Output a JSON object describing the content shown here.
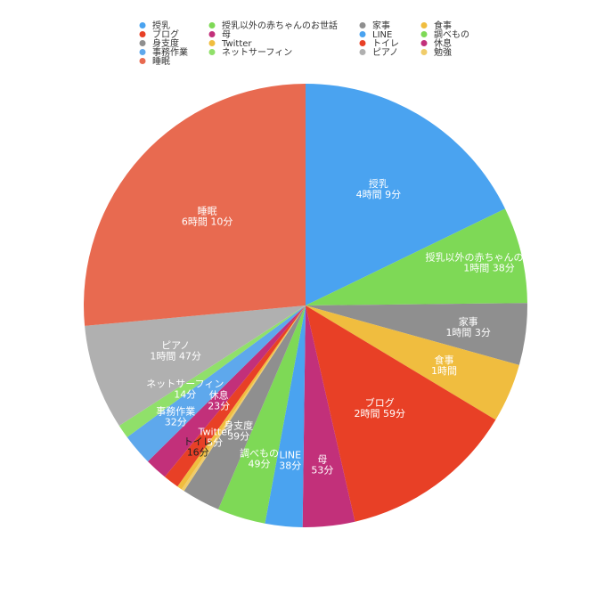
{
  "chart_data": {
    "type": "pie",
    "unit": "minutes",
    "slices": [
      {
        "name": "授乳",
        "value": 249,
        "display": "4時間 9分",
        "color": "#4aa3f0"
      },
      {
        "name": "授乳以外の赤ちゃんのお世話",
        "value": 98,
        "display": "1時間 38分",
        "color": "#7ed956"
      },
      {
        "name": "家事",
        "value": 63,
        "display": "1時間 3分",
        "color": "#8f8f8f"
      },
      {
        "name": "食事",
        "value": 60,
        "display": "1時間",
        "color": "#f0bd3f"
      },
      {
        "name": "ブログ",
        "value": 179,
        "display": "2時間 59分",
        "color": "#e84026"
      },
      {
        "name": "母",
        "value": 53,
        "display": "53分",
        "color": "#c2307a"
      },
      {
        "name": "LINE",
        "value": 38,
        "display": "38分",
        "color": "#4aa3f0"
      },
      {
        "name": "調べもの",
        "value": 49,
        "display": "49分",
        "color": "#7ed956"
      },
      {
        "name": "身支度",
        "value": 39,
        "display": "39分",
        "color": "#8f8f8f"
      },
      {
        "name": "勉強",
        "value": 3,
        "display": "",
        "color": "#f0cc6a"
      },
      {
        "name": "Twitter",
        "value": 5,
        "display": "5分",
        "color": "#f0bd3f"
      },
      {
        "name": "トイレ",
        "value": 16,
        "display": "16分",
        "color": "#e84026"
      },
      {
        "name": "休息",
        "value": 23,
        "display": "23分",
        "color": "#c2307a"
      },
      {
        "name": "事務作業",
        "value": 32,
        "display": "32分",
        "color": "#5ea8ec"
      },
      {
        "name": "ネットサーフィン",
        "value": 14,
        "display": "14分",
        "color": "#90e06a"
      },
      {
        "name": "ピアノ",
        "value": 107,
        "display": "1時間 47分",
        "color": "#b0b0b0"
      },
      {
        "name": "睡眠",
        "value": 370,
        "display": "6時間 10分",
        "color": "#e86a50"
      }
    ],
    "legend": {
      "position": "top",
      "entries": [
        {
          "name": "授乳",
          "color": "#4aa3f0"
        },
        {
          "name": "ブログ",
          "color": "#e84026"
        },
        {
          "name": "身支度",
          "color": "#8f8f8f"
        },
        {
          "name": "事務作業",
          "color": "#5ea8ec"
        },
        {
          "name": "睡眠",
          "color": "#e86a50"
        },
        {
          "name": "授乳以外の赤ちゃんのお世話",
          "color": "#7ed956"
        },
        {
          "name": "母",
          "color": "#c2307a"
        },
        {
          "name": "Twitter",
          "color": "#f0bd3f"
        },
        {
          "name": "ネットサーフィン",
          "color": "#90e06a"
        },
        {
          "name": "家事",
          "color": "#8f8f8f"
        },
        {
          "name": "LINE",
          "color": "#4aa3f0"
        },
        {
          "name": "トイレ",
          "color": "#e84026"
        },
        {
          "name": "ピアノ",
          "color": "#b0b0b0"
        },
        {
          "name": "食事",
          "color": "#f0bd3f"
        },
        {
          "name": "調べもの",
          "color": "#7ed956"
        },
        {
          "name": "休息",
          "color": "#c2307a"
        },
        {
          "name": "勉強",
          "color": "#f0cc6a"
        }
      ]
    }
  }
}
